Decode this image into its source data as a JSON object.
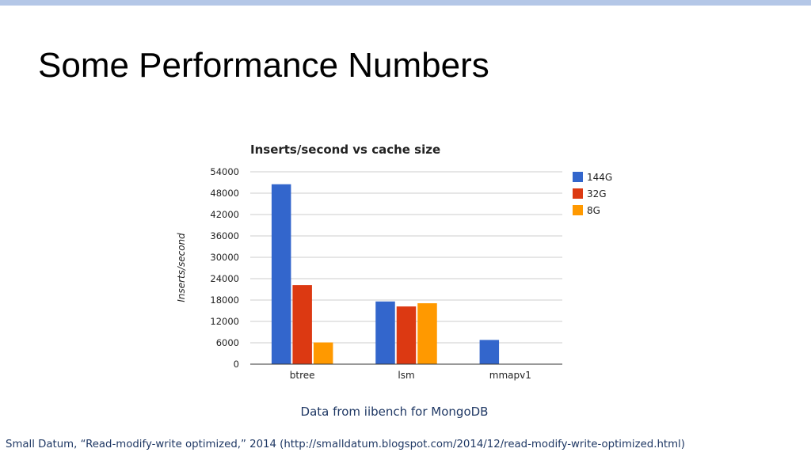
{
  "slide": {
    "title": "Some Performance Numbers",
    "caption": "Data from iibench for MongoDB",
    "footnote": "Small Datum, “Read-modify-write optimized,” 2014 (http://smalldatum.blogspot.com/2014/12/read-modify-write-optimized.html)",
    "accent_bar_color": "#b4c7e7"
  },
  "chart_data": {
    "type": "bar",
    "title": "Inserts/second vs cache size",
    "xlabel": "",
    "ylabel": "Inserts/second",
    "categories": [
      "btree",
      "lsm",
      "mmapv1"
    ],
    "series": [
      {
        "name": "144G",
        "color": "#3366cc",
        "values": [
          50500,
          17600,
          6800
        ]
      },
      {
        "name": "32G",
        "color": "#dc3912",
        "values": [
          22200,
          16200,
          0
        ]
      },
      {
        "name": "8G",
        "color": "#ff9900",
        "values": [
          6100,
          17100,
          0
        ]
      }
    ],
    "ylim": [
      0,
      54000
    ],
    "yticks": [
      "0",
      "6000",
      "12000",
      "18000",
      "24000",
      "30000",
      "36000",
      "42000",
      "48000",
      "54000"
    ],
    "grid": true,
    "legend_position": "right"
  }
}
